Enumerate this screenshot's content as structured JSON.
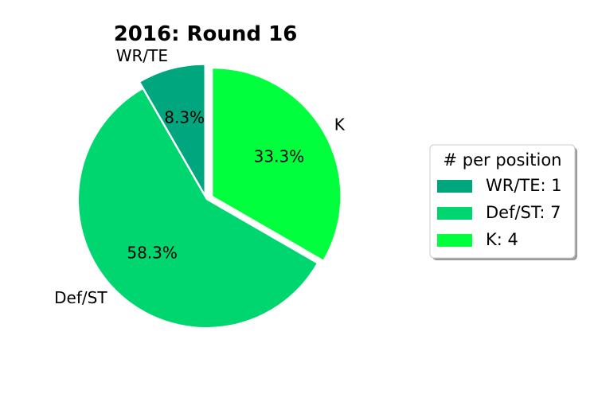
{
  "chart_data": {
    "type": "pie",
    "title": "2016: Round 16",
    "slices": [
      {
        "label": "WR/TE",
        "value": 1,
        "percent_label": "8.3%",
        "color": "#00a67e",
        "exploded": true
      },
      {
        "label": "Def/ST",
        "value": 7,
        "percent_label": "58.3%",
        "color": "#00d670",
        "exploded": false
      },
      {
        "label": "K",
        "value": 4,
        "percent_label": "33.3%",
        "color": "#00ff3c",
        "exploded": true
      }
    ],
    "legend": {
      "title": "# per position",
      "placement": "right",
      "entries": [
        "WR/TE: 1",
        "Def/ST: 7",
        "K: 4"
      ]
    }
  }
}
